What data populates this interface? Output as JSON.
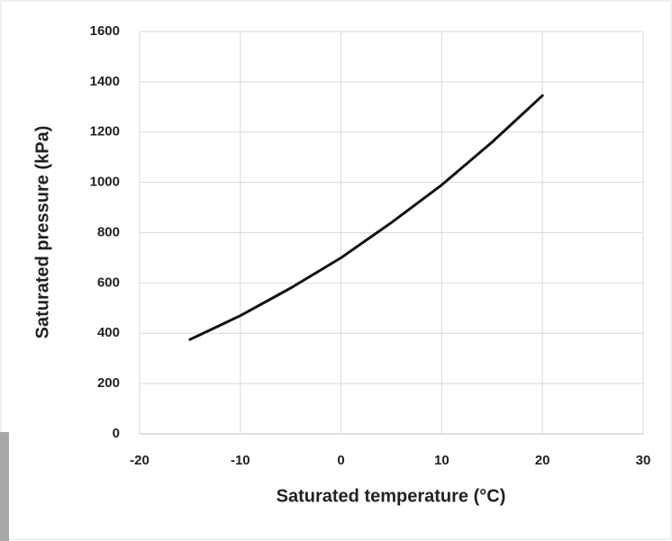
{
  "chart_data": {
    "type": "line",
    "x": [
      -15,
      -10,
      -5,
      0,
      5,
      10,
      15,
      20
    ],
    "series": [
      {
        "color": "#111111",
        "values": [
          375,
          470,
          580,
          700,
          840,
          990,
          1160,
          1345
        ]
      }
    ],
    "xlim": [
      -20,
      30
    ],
    "xticks": [
      -20,
      -10,
      0,
      10,
      20,
      30
    ],
    "ylim": [
      0,
      1600
    ],
    "yticks": [
      0,
      200,
      400,
      600,
      800,
      1000,
      1200,
      1400,
      1600
    ],
    "xlabel": "Saturated temperature (°C)",
    "ylabel": "Saturated pressure (kPa)",
    "grid": true
  }
}
